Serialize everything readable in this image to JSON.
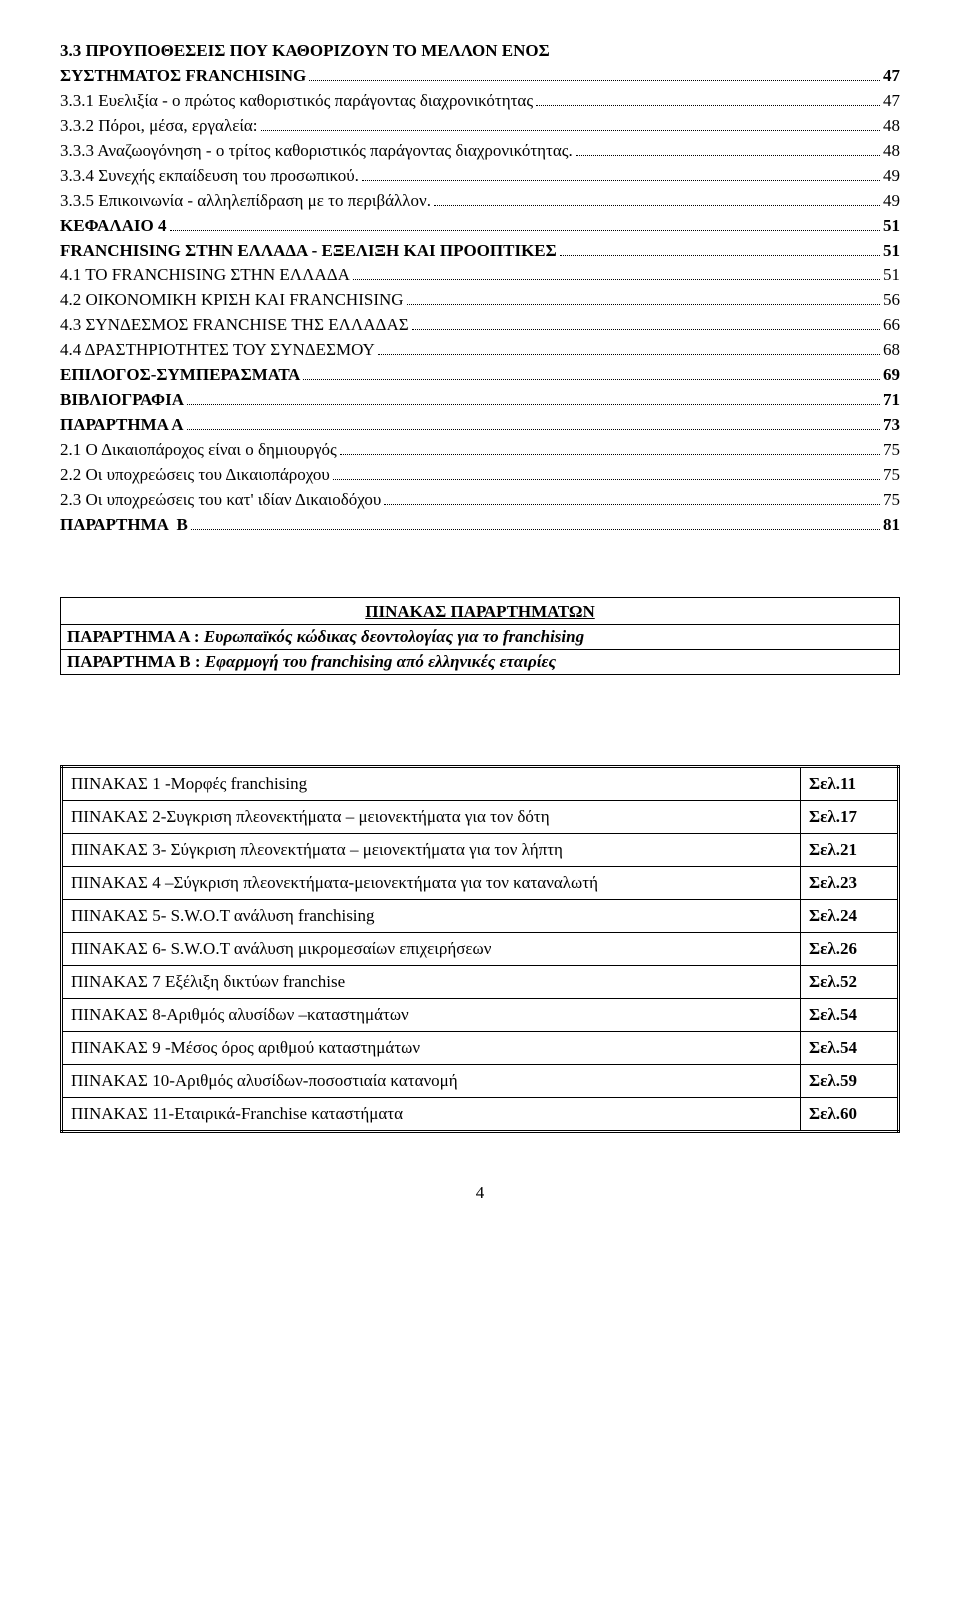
{
  "toc": [
    {
      "type": "multiline",
      "bold": true,
      "lines": [
        "3.3 ΠΡΟΥΠΟΘΕΣΕΙΣ  ΠΟΥ ΚΑΘΟΡΙΖΟΥΝ ΤΟ ΜΕΛΛΟΝ ΕΝΟΣ",
        "ΣΥΣΤΗΜΑΤΟΣ FRANCHISING"
      ],
      "page": "47"
    },
    {
      "bold": false,
      "label": "3.3.1 Ευελιξία - ο πρώτος καθοριστικός παράγοντας διαχρονικότητας",
      "page": "47"
    },
    {
      "bold": false,
      "label": "3.3.2 Πόροι, μέσα, εργαλεία:",
      "page": "48"
    },
    {
      "bold": false,
      "label": "3.3.3 Αναζωογόνηση - ο τρίτος καθοριστικός παράγοντας διαχρονικότητας.",
      "page": "48"
    },
    {
      "bold": false,
      "label": "3.3.4 Συνεχής εκπαίδευση του προσωπικού.",
      "page": "49"
    },
    {
      "bold": false,
      "label": "3.3.5 Επικοινωνία - αλληλεπίδραση με το περιβάλλον.",
      "page": "49"
    },
    {
      "bold": true,
      "label": "ΚΕΦΑΛΑΙΟ 4",
      "page": "51"
    },
    {
      "bold": true,
      "label": "FRANCHISING ΣΤΗΝ ΕΛΛΑΔΑ - ΕΞΕΛΙΞΗ ΚΑΙ ΠΡΟΟΠΤΙΚΕΣ",
      "page": "51"
    },
    {
      "bold": false,
      "label": "4.1 ΤΟ FRANCHISING ΣΤΗΝ ΕΛΛΑΔΑ",
      "page": "51"
    },
    {
      "bold": false,
      "label": "4.2 ΟΙΚΟΝΟΜΙΚΗ ΚΡΙΣΗ ΚΑΙ FRANCHISING",
      "page": "56"
    },
    {
      "bold": false,
      "label": "4.3 ΣΥΝΔΕΣΜΟΣ FRANCHISE ΤΗΣ ΕΛΛΑΔΑΣ",
      "page": "66"
    },
    {
      "bold": false,
      "label": "4.4 ΔΡΑΣΤΗΡΙΟΤΗΤΕΣ ΤΟΥ ΣΥΝΔΕΣΜΟΥ",
      "page": "68"
    },
    {
      "bold": true,
      "label": "ΕΠΙΛΟΓΟΣ-ΣΥΜΠΕΡΑΣΜΑΤΑ",
      "page": "69"
    },
    {
      "bold": true,
      "label": "ΒΙΒΛΙΟΓΡΑΦΙΑ",
      "page": "71"
    },
    {
      "bold": true,
      "label": "ΠΑΡΑΡΤΗΜΑ Α",
      "page": "73"
    },
    {
      "bold": false,
      "label": "2.1 Ο Δικαιοπάροχος είναι ο δημιουργός",
      "page": "75"
    },
    {
      "bold": false,
      "label": "2.2 Οι υποχρεώσεις του Δικαιοπάροχου",
      "page": "75"
    },
    {
      "bold": false,
      "label": "2.3 Οι υποχρεώσεις του κατ' ιδίαν Δικαιοδόχου",
      "page": "75"
    },
    {
      "bold": true,
      "label": "ΠΑΡΑΡΤΗΜΑ  Β",
      "page": "81"
    }
  ],
  "appendix_box": {
    "title": "ΠΙΝΑΚΑΣ ΠΑΡΑΡΤΗΜΑΤΩΝ",
    "rows": [
      {
        "label": "ΠΑΡΑΡΤΗΜΑ Α   :",
        "text": " Ευρωπαϊκός κώδικας δεοντολογίας για το franchising"
      },
      {
        "label": "ΠΑΡΑΡΤΗΜΑ Β  :",
        "text": " Εφαρμογή του franchising από ελληνικές εταιρίες"
      }
    ]
  },
  "pinakas": [
    {
      "text": "ΠΙΝΑΚΑΣ 1 -Μορφές franchising",
      "page": "Σελ.11"
    },
    {
      "text": "ΠΙΝΑΚΑΣ 2-Συγκριση πλεονεκτήματα – μειονεκτήματα για τον δότη",
      "page": "Σελ.17"
    },
    {
      "text": "ΠΙΝΑΚΑΣ 3- Σύγκριση πλεονεκτήματα – μειονεκτήματα για τον λήπτη",
      "page": "Σελ.21"
    },
    {
      "text": "ΠΙΝΑΚΑΣ  4 –Σύγκριση πλεονεκτήματα-μειονεκτήματα για τον καταναλωτή",
      "page": "Σελ.23"
    },
    {
      "text": "ΠΙΝΑΚΑΣ 5- S.W.O.T   ανάλυση   franchising",
      "page": "Σελ.24"
    },
    {
      "text": "ΠΙΝΑΚΑΣ 6- S.W.O.T   ανάλυση μικρομεσαίων επιχειρήσεων",
      "page": "Σελ.26"
    },
    {
      "text": "ΠΙΝΑΚΑΣ 7  Εξέλιξη δικτύων franchise",
      "page": "Σελ.52"
    },
    {
      "text": "ΠΙΝΑΚΑΣ 8-Αριθμός αλυσίδων –καταστημάτων",
      "page": "Σελ.54"
    },
    {
      "text": "ΠΙΝΑΚΑΣ 9 -Μέσος όρος αριθμού καταστημάτων",
      "page": "Σελ.54"
    },
    {
      "text": "ΠΙΝΑΚΑΣ 10-Αριθμός αλυσίδων-ποσοστιαία κατανομή",
      "page": "Σελ.59"
    },
    {
      "text": "ΠΙΝΑΚΑΣ 11-Εταιρικά-Franchise καταστήματα",
      "page": "Σελ.60"
    }
  ],
  "footer_page": "4"
}
